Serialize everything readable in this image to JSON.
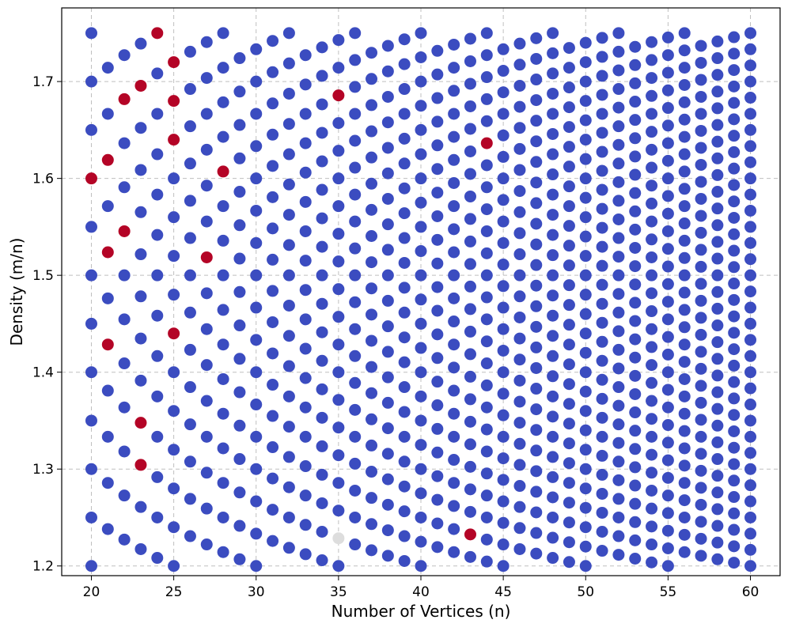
{
  "chart_data": {
    "type": "scatter",
    "title": "",
    "xlabel": "Number of Vertices (n)",
    "ylabel": "Density (m/n)",
    "xlim": [
      18.2,
      61.8
    ],
    "ylim": [
      1.19,
      1.776
    ],
    "xticks": [
      20,
      25,
      30,
      35,
      40,
      45,
      50,
      55,
      60
    ],
    "yticks": [
      1.2,
      1.3,
      1.4,
      1.5,
      1.6,
      1.7
    ],
    "grid": true,
    "n_range": [
      20,
      60
    ],
    "density_range": [
      1.2,
      1.75
    ],
    "colors": {
      "default": "#3b4cc0",
      "highlight": "#b40426",
      "neutral": "#dddddd"
    },
    "highlight_points": [
      [
        24,
        1.75
      ],
      [
        22,
        1.682
      ],
      [
        23,
        1.696
      ],
      [
        25,
        1.72
      ],
      [
        25,
        1.68
      ],
      [
        25,
        1.64
      ],
      [
        20,
        1.6
      ],
      [
        21,
        1.619
      ],
      [
        28,
        1.607
      ],
      [
        22,
        1.545
      ],
      [
        21,
        1.524
      ],
      [
        27,
        1.519
      ],
      [
        35,
        1.686
      ],
      [
        44,
        1.636
      ],
      [
        21,
        1.429
      ],
      [
        25,
        1.44
      ],
      [
        23,
        1.348
      ],
      [
        23,
        1.304
      ],
      [
        43,
        1.233
      ]
    ],
    "neutral_points": [
      [
        35,
        1.229
      ]
    ]
  }
}
